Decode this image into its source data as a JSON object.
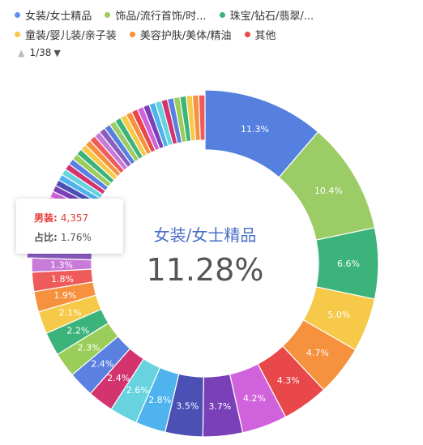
{
  "legend": {
    "items": [
      {
        "label": "女装/女士精品",
        "color": "#5b8ff9"
      },
      {
        "label": "饰品/流行首饰/时...",
        "color": "#9acd5a"
      },
      {
        "label": "珠宝/钻石/翡翠/...",
        "color": "#3cb37a"
      },
      {
        "label": "童装/婴儿装/亲子装",
        "color": "#f7c948"
      },
      {
        "label": "美容护肤/美体/精油",
        "color": "#f6913e"
      },
      {
        "label": "其他",
        "color": "#e8484a"
      }
    ]
  },
  "pager": {
    "text": "1/38"
  },
  "center": {
    "category": "女装/女士精品",
    "percent": "11.28%"
  },
  "tooltip": {
    "name_label": "男装:",
    "name_value": "4,357",
    "share_label": "占比:",
    "share_value": "1.76%"
  },
  "chart_data": {
    "type": "pie",
    "subtype": "donut",
    "slices": [
      {
        "label": "11.3%",
        "value": 11.3,
        "color": "#5580e0"
      },
      {
        "label": "10.4%",
        "value": 10.4,
        "color": "#9ccc65"
      },
      {
        "label": "6.6%",
        "value": 6.6,
        "color": "#3cb37a"
      },
      {
        "label": "5.0%",
        "value": 5.0,
        "color": "#f7c948"
      },
      {
        "label": "4.7%",
        "value": 4.7,
        "color": "#f6913e"
      },
      {
        "label": "4.3%",
        "value": 4.3,
        "color": "#e8484a"
      },
      {
        "label": "4.2%",
        "value": 4.2,
        "color": "#d062dc"
      },
      {
        "label": "3.7%",
        "value": 3.7,
        "color": "#7a40b8"
      },
      {
        "label": "3.5%",
        "value": 3.5,
        "color": "#4b50b5"
      },
      {
        "label": "2.8%",
        "value": 2.8,
        "color": "#4fb3ee"
      },
      {
        "label": "2.6%",
        "value": 2.6,
        "color": "#66d3df"
      },
      {
        "label": "2.4%",
        "value": 2.4,
        "color": "#d4346e"
      },
      {
        "label": "2.4%",
        "value": 2.4,
        "color": "#5a80e0"
      },
      {
        "label": "2.3%",
        "value": 2.3,
        "color": "#9acd5a"
      },
      {
        "label": "2.2%",
        "value": 2.2,
        "color": "#3cb37a"
      },
      {
        "label": "2.1%",
        "value": 2.1,
        "color": "#f7c948"
      },
      {
        "label": "1.9%",
        "value": 1.9,
        "color": "#f6913e"
      },
      {
        "label": "1.8%",
        "value": 1.8,
        "color": "#ef5a5a"
      },
      {
        "label": "1.3%",
        "value": 1.3,
        "color": "#c97bd9"
      },
      {
        "label": "1.76%",
        "value": 1.76,
        "color": "#8a5cc0",
        "highlight": true,
        "show_label": false
      }
    ],
    "small_slice_colors": [
      "#3f6fd8",
      "#4a7de0",
      "#9acd5a",
      "#3cb37a",
      "#f7c948",
      "#f6913e",
      "#e8484a",
      "#d062dc",
      "#7a40b8",
      "#4b50b5",
      "#4fb3ee",
      "#66d3df",
      "#d4346e",
      "#5a80e0",
      "#9acd5a",
      "#3cb37a",
      "#f7c948",
      "#f6913e",
      "#ef5a5a",
      "#c97bd9",
      "#8a5cc0",
      "#5580e0",
      "#9ccc65",
      "#3cb37a",
      "#f7c948",
      "#f6913e",
      "#e8484a",
      "#d062dc",
      "#7a40b8",
      "#4fb3ee",
      "#66d3df",
      "#d4346e",
      "#5a80e0",
      "#9acd5a",
      "#3cb37a",
      "#f7c948",
      "#f6913e",
      "#ef5a5a"
    ]
  }
}
